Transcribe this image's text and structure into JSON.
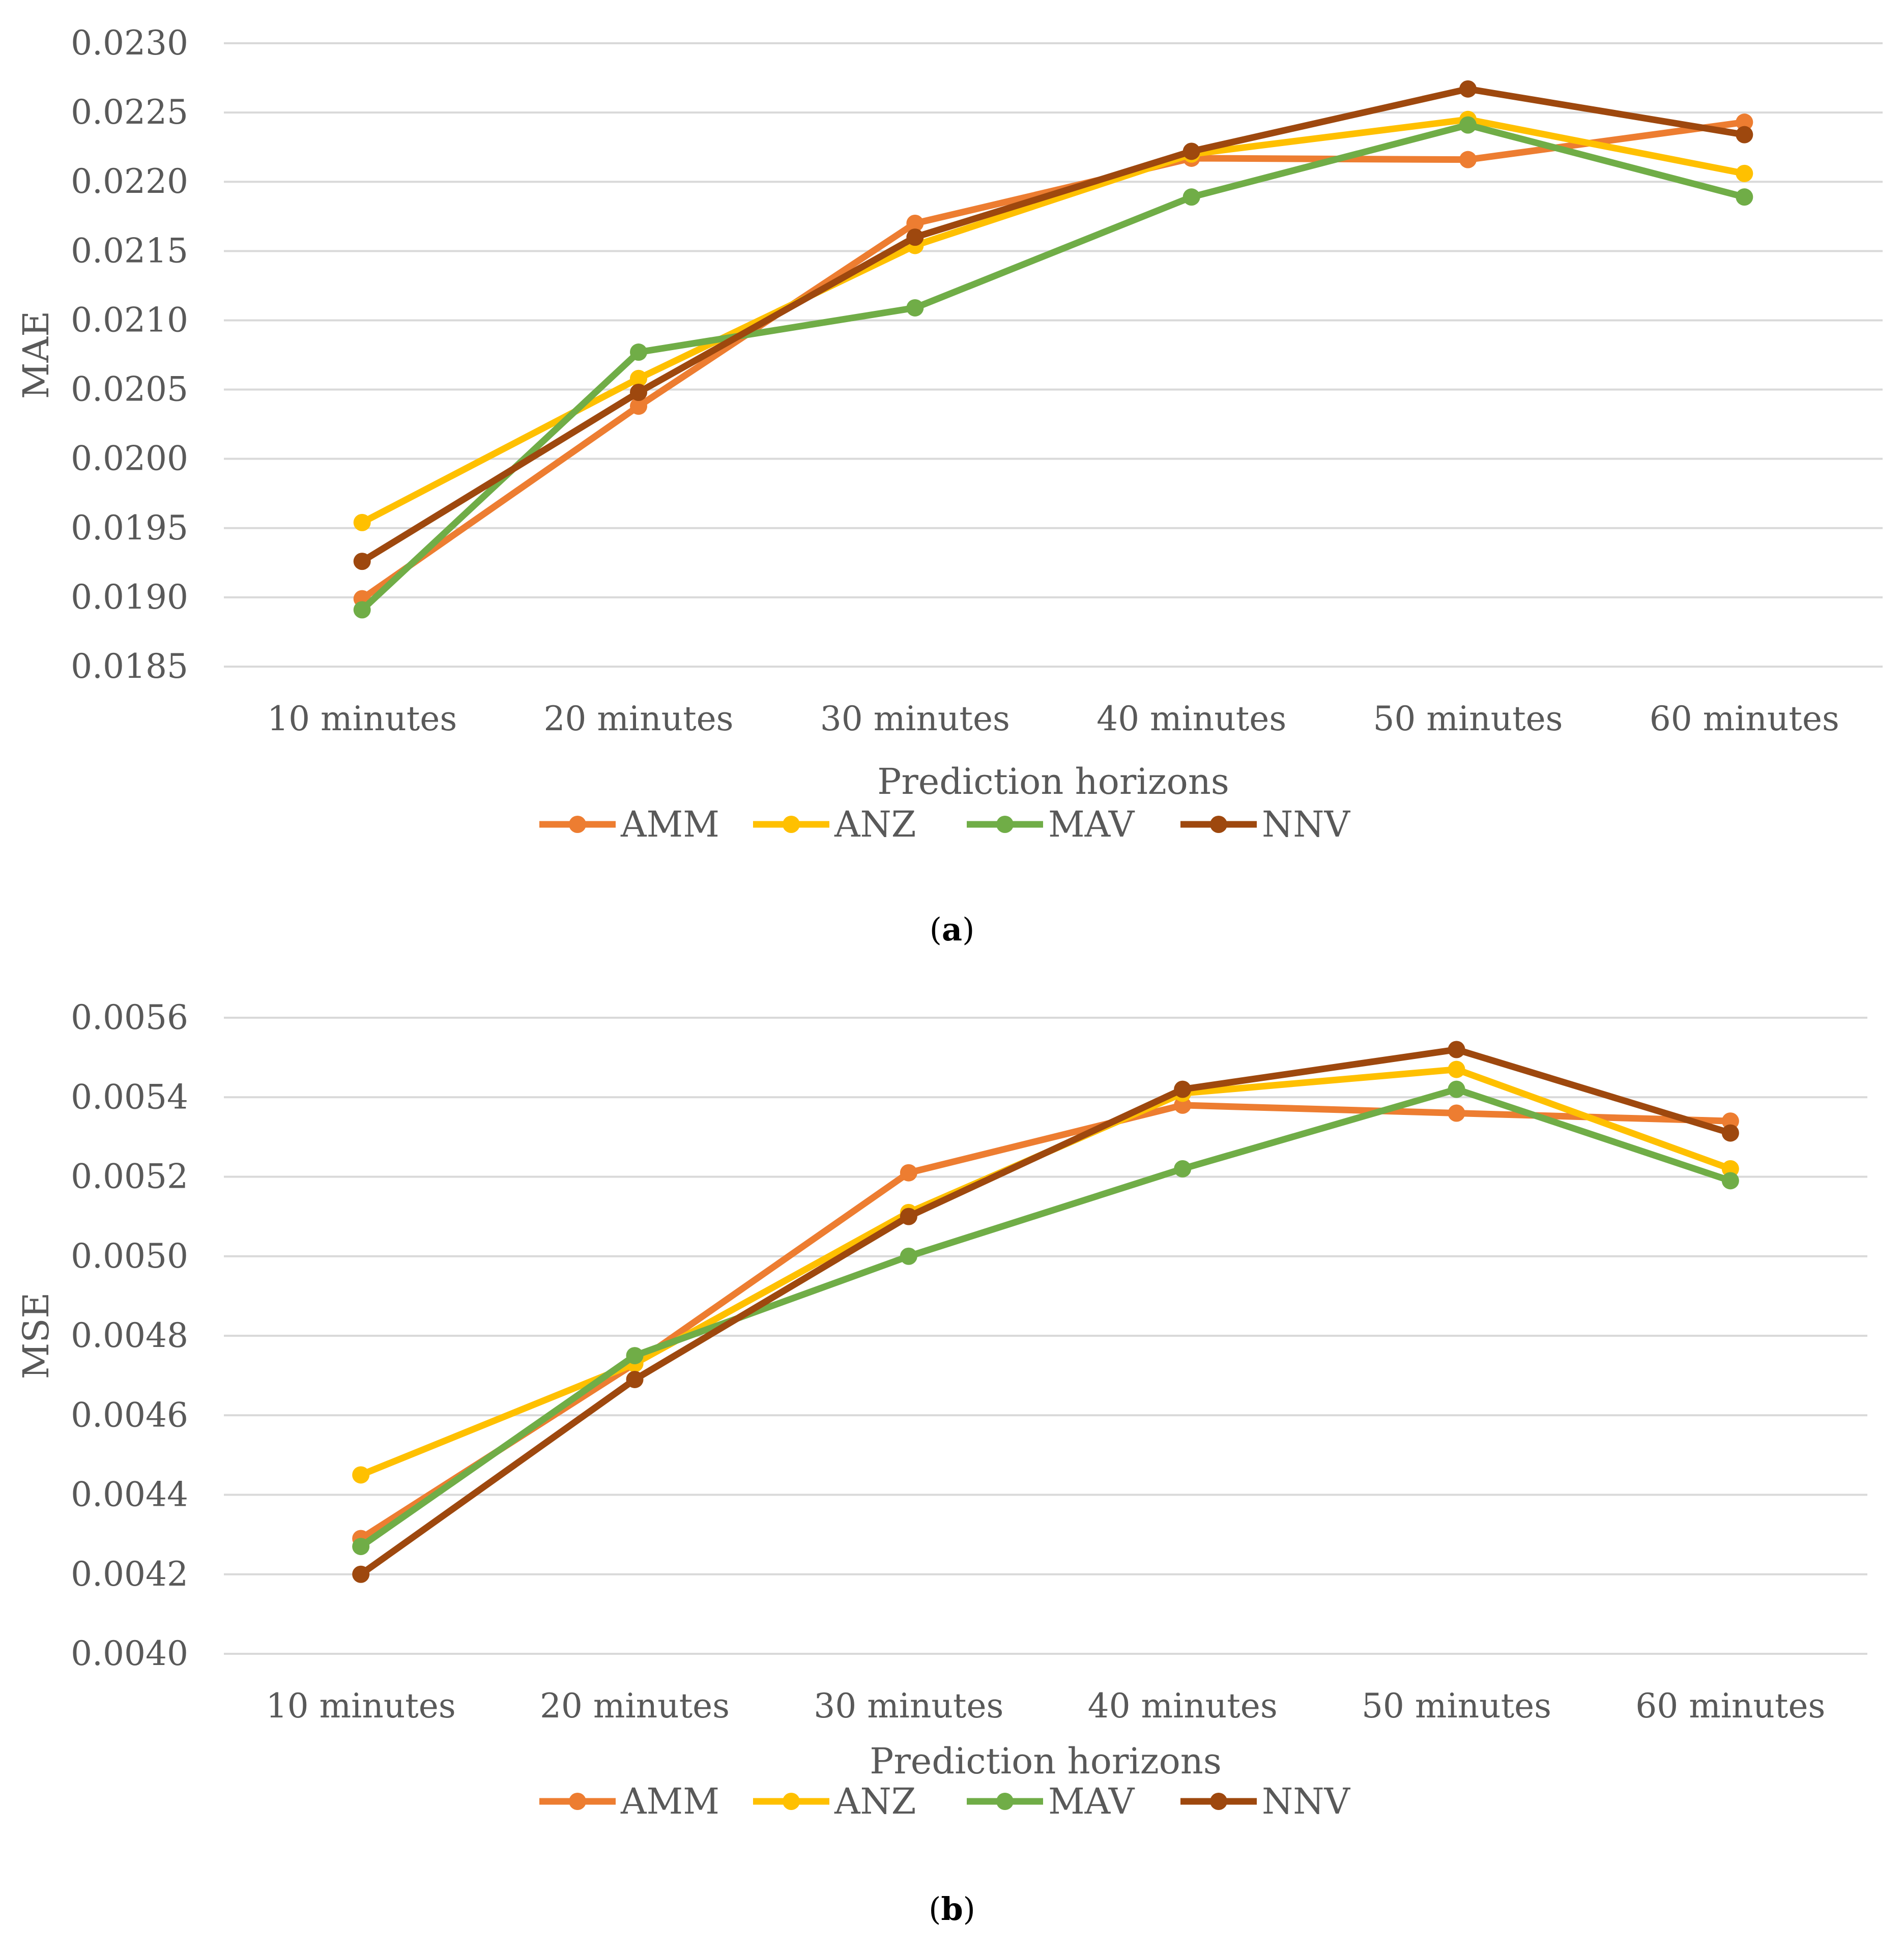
{
  "chart_data": [
    {
      "type": "line",
      "panel_label": "a",
      "xlabel": "Prediction horizons",
      "ylabel": "MAE",
      "ylim": [
        0.0185,
        0.023
      ],
      "yticks": [
        "0.0185",
        "0.0190",
        "0.0195",
        "0.0200",
        "0.0205",
        "0.0210",
        "0.0215",
        "0.0220",
        "0.0225",
        "0.0230"
      ],
      "tick_values": [
        0.0185,
        0.019,
        0.0195,
        0.02,
        0.0205,
        0.021,
        0.0215,
        0.022,
        0.0225,
        0.023
      ],
      "grid": true,
      "legend": "bottom",
      "categories": [
        "10 minutes",
        "20 minutes",
        "30 minutes",
        "40 minutes",
        "50 minutes",
        "60 minutes"
      ],
      "series": [
        {
          "name": "AMM",
          "color": "#ED7D31",
          "values": [
            0.01899,
            0.02038,
            0.0217,
            0.02217,
            0.02216,
            0.02243
          ]
        },
        {
          "name": "ANZ",
          "color": "#FFC000",
          "values": [
            0.01954,
            0.02058,
            0.02154,
            0.0222,
            0.02245,
            0.02206
          ]
        },
        {
          "name": "MAV",
          "color": "#70AD47",
          "values": [
            0.01891,
            0.02077,
            0.02109,
            0.02189,
            0.02241,
            0.02189
          ]
        },
        {
          "name": "NNV",
          "color": "#9E480E",
          "values": [
            0.01926,
            0.02048,
            0.0216,
            0.02222,
            0.02267,
            0.02234
          ]
        }
      ]
    },
    {
      "type": "line",
      "panel_label": "b",
      "xlabel": "Prediction horizons",
      "ylabel": "MSE",
      "ylim": [
        0.004,
        0.0056
      ],
      "yticks": [
        "0.0040",
        "0.0042",
        "0.0044",
        "0.0046",
        "0.0048",
        "0.0050",
        "0.0052",
        "0.0054",
        "0.0056"
      ],
      "tick_values": [
        0.004,
        0.0042,
        0.0044,
        0.0046,
        0.0048,
        0.005,
        0.0052,
        0.0054,
        0.0056
      ],
      "grid": true,
      "legend": "bottom",
      "categories": [
        "10 minutes",
        "20 minutes",
        "30 minutes",
        "40 minutes",
        "50 minutes",
        "60 minutes"
      ],
      "series": [
        {
          "name": "AMM",
          "color": "#ED7D31",
          "values": [
            0.00429,
            0.00473,
            0.00521,
            0.00538,
            0.00536,
            0.00534
          ]
        },
        {
          "name": "ANZ",
          "color": "#FFC000",
          "values": [
            0.00445,
            0.00473,
            0.00511,
            0.00541,
            0.00547,
            0.00522
          ]
        },
        {
          "name": "MAV",
          "color": "#70AD47",
          "values": [
            0.00427,
            0.00475,
            0.005,
            0.00522,
            0.00542,
            0.00519
          ]
        },
        {
          "name": "NNV",
          "color": "#9E480E",
          "values": [
            0.0042,
            0.00469,
            0.0051,
            0.00542,
            0.00552,
            0.00531
          ]
        }
      ]
    }
  ]
}
